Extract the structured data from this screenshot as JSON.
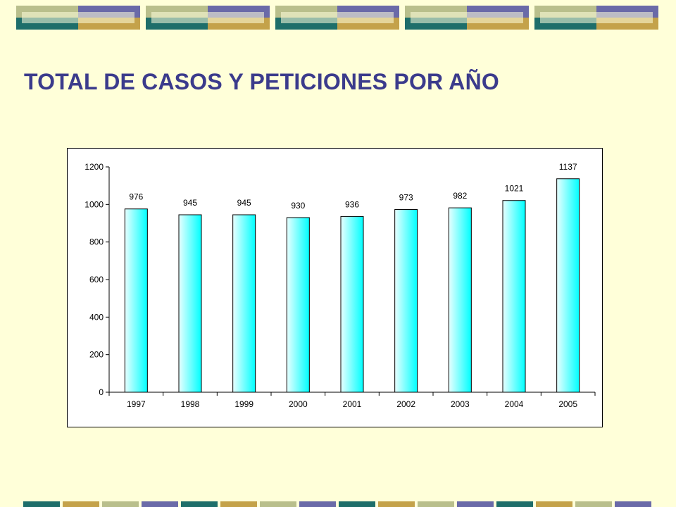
{
  "slide": {
    "title": "TOTAL DE CASOS Y PETICIONES POR AÑO"
  },
  "colors": {
    "background": "#FFFFD9",
    "title": "#3B3B8C",
    "bar_fill_start": "#E8FFFF",
    "bar_fill_end": "#00FFFF",
    "decor_olive": "#B9BF8C",
    "decor_purple": "#6A6AA8",
    "decor_teal": "#1E6E6A",
    "decor_gold": "#C4A24A"
  },
  "chart_data": {
    "type": "bar",
    "categories": [
      "1997",
      "1998",
      "1999",
      "2000",
      "2001",
      "2002",
      "2003",
      "2004",
      "2005"
    ],
    "values": [
      976,
      945,
      945,
      930,
      936,
      973,
      982,
      1021,
      1137
    ],
    "data_labels": [
      "976",
      "945",
      "945",
      "930",
      "936",
      "973",
      "982",
      "1021",
      "1137"
    ],
    "y_ticks": [
      0,
      200,
      400,
      600,
      800,
      1000,
      1200
    ],
    "ylim": [
      0,
      1200
    ],
    "grid": false,
    "legend": "none"
  }
}
